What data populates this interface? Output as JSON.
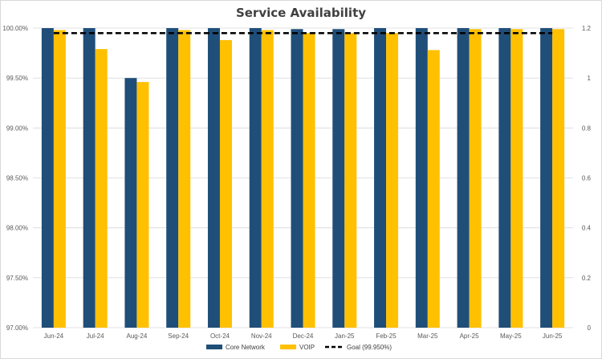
{
  "chart_data": {
    "type": "bar",
    "title": "Service Availability",
    "categories": [
      "Jun-24",
      "Jul-24",
      "Aug-24",
      "Sep-24",
      "Oct-24",
      "Nov-24",
      "Dec-24",
      "Jan-25",
      "Feb-25",
      "Mar-25",
      "Apr-25",
      "May-25",
      "Jun-25"
    ],
    "series": [
      {
        "name": "Core Network",
        "values": [
          100.0,
          100.0,
          99.5,
          100.0,
          100.0,
          100.0,
          99.99,
          99.99,
          100.0,
          100.0,
          100.0,
          100.0,
          100.0
        ],
        "color": "#1f4e79"
      },
      {
        "name": "VOIP",
        "values": [
          99.98,
          99.79,
          99.46,
          99.98,
          99.88,
          99.98,
          99.95,
          99.95,
          99.95,
          99.78,
          99.99,
          99.99,
          99.99
        ],
        "color": "#ffc000"
      }
    ],
    "goal": {
      "name": "Goal (99.950%)",
      "value": 1.18,
      "axis": "secondary",
      "style": "dashed",
      "color": "#000000"
    },
    "y_left": {
      "ylim": [
        97.0,
        100.0
      ],
      "ticks": [
        "97.00%",
        "97.50%",
        "98.00%",
        "98.50%",
        "99.00%",
        "99.50%",
        "100.00%"
      ],
      "tick_values": [
        97.0,
        97.5,
        98.0,
        98.5,
        99.0,
        99.5,
        100.0
      ]
    },
    "y_right": {
      "ylim": [
        0,
        1.2
      ],
      "ticks": [
        "0",
        "0.2",
        "0.4",
        "0.6",
        "0.8",
        "1",
        "1.2"
      ],
      "tick_values": [
        0,
        0.2,
        0.4,
        0.6,
        0.8,
        1.0,
        1.2
      ]
    },
    "grid": true,
    "legend_position": "bottom"
  }
}
